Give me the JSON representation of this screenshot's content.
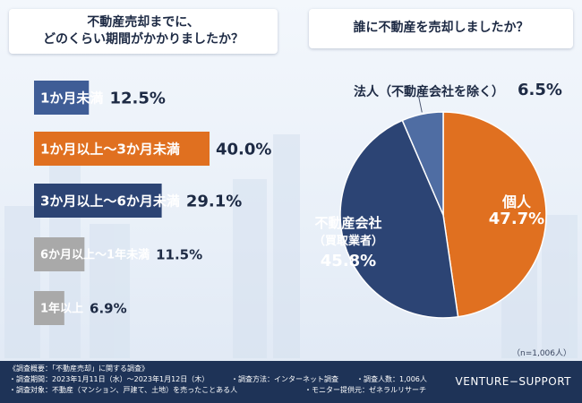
{
  "questions": {
    "left_line1": "不動産売却までに、",
    "left_line2": "どのくらい期間がかかりましたか？",
    "right": "誰に不動産を売却しましたか？"
  },
  "chart_data": [
    {
      "type": "bar",
      "orientation": "horizontal",
      "title": "不動産売却までに、どのくらい期間がかかりましたか？",
      "categories": [
        "1か月未満",
        "1か月以上～3か月未満",
        "3か月以上～6か月未満",
        "6か月以上～1年未満",
        "1年以上"
      ],
      "values": [
        12.5,
        40.0,
        29.1,
        11.5,
        6.9
      ],
      "value_labels": [
        "12.5%",
        "40.0%",
        "29.1%",
        "11.5%",
        "6.9%"
      ],
      "unit": "%",
      "colors": [
        "#3f5d96",
        "#e07020",
        "#2c4474",
        "#a9a9a9",
        "#a9a9a9"
      ],
      "label_colors": [
        "#ffffff",
        "#ffffff",
        "#ffffff",
        "#ffffff",
        "#ffffff"
      ]
    },
    {
      "type": "pie",
      "title": "誰に不動産を売却しましたか？",
      "categories": [
        "個人",
        "不動産会社（買取業者）",
        "法人（不動産会社を除く）"
      ],
      "values": [
        47.7,
        45.8,
        6.5
      ],
      "display_names": [
        [
          "個人"
        ],
        [
          "不動産会社",
          "（買取業者）"
        ],
        [
          "法人（不動産会社を除く）"
        ]
      ],
      "value_labels": [
        "47.7%",
        "45.8%",
        "6.5%"
      ],
      "colors": [
        "#e07020",
        "#2c4474",
        "#4f6da3"
      ],
      "legend": "none",
      "note": "（n=1,006人）"
    }
  ],
  "footer": {
    "overview": "《調査概要：「不動産売却」に関する調査》",
    "period": "・調査期間：2023年1月11日（水）～2023年1月12日（木）",
    "method": "・調査方法：インターネット調査",
    "count": "・調査人数：1,006人",
    "target": "・調査対象：不動産（マンション、戸建て、土地）を売ったことある人",
    "provider": "・モニター提供元：ゼネラルリサーチ",
    "brand": "VENTURE−SUPPORT"
  }
}
